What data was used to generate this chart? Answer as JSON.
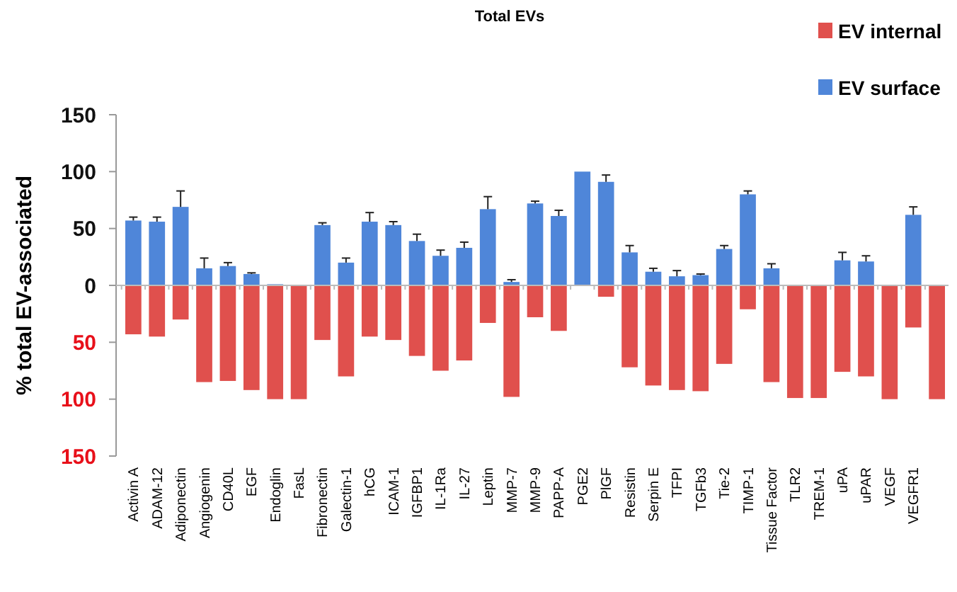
{
  "chart_data": {
    "type": "bar",
    "title": "Total EVs",
    "ylabel": "% total EV-associated",
    "categories": [
      "Activin A",
      "ADAM-12",
      "Adiponectin",
      "Angiogenin",
      "CD40L",
      "EGF",
      "Endoglin",
      "FasL",
      "Fibronectin",
      "Galectin-1",
      "hCG",
      "ICAM-1",
      "IGFBP1",
      "IL-1Ra",
      "IL-27",
      "Leptin",
      "MMP-7",
      "MMP-9",
      "PAPP-A",
      "PGE2",
      "PlGF",
      "Resistin",
      "Serpin E",
      "TFPI",
      "TGFb3",
      "Tie-2",
      "TIMP-1",
      "Tissue Factor",
      "TLR2",
      "TREM-1",
      "uPA",
      "uPAR",
      "VEGF",
      "VEGFR1",
      null
    ],
    "series": [
      {
        "name": "EV internal",
        "color": "#e0504d",
        "values": [
          -43,
          -45,
          -30,
          -85,
          -84,
          -92,
          -100,
          -100,
          -48,
          -80,
          -45,
          -48,
          -62,
          -75,
          -66,
          -33,
          -98,
          -28,
          -40,
          0,
          -10,
          -72,
          -88,
          -92,
          -93,
          -69,
          -21,
          -85,
          -99,
          -99,
          -76,
          -80,
          -100,
          -37,
          -100
        ]
      },
      {
        "name": "EV surface",
        "color": "#4f86d9",
        "values": [
          57,
          56,
          69,
          15,
          17,
          10,
          1,
          0,
          53,
          20,
          56,
          53,
          39,
          26,
          33,
          67,
          3,
          72,
          61,
          100,
          91,
          29,
          12,
          8,
          9,
          32,
          80,
          15,
          0,
          0,
          22,
          21,
          0,
          62,
          0
        ],
        "errors": [
          [
            57,
            60
          ],
          [
            56,
            60
          ],
          [
            69,
            83
          ],
          [
            15,
            24
          ],
          [
            17,
            20
          ],
          [
            10,
            11
          ],
          null,
          null,
          [
            53,
            55
          ],
          [
            20,
            24
          ],
          [
            56,
            64
          ],
          [
            53,
            56
          ],
          [
            39,
            45
          ],
          [
            26,
            31
          ],
          [
            33,
            38
          ],
          [
            67,
            78
          ],
          [
            3,
            5
          ],
          [
            72,
            74
          ],
          [
            61,
            66
          ],
          null,
          [
            91,
            97
          ],
          [
            29,
            35
          ],
          [
            12,
            15
          ],
          [
            8,
            13
          ],
          [
            9,
            10
          ],
          [
            32,
            35
          ],
          [
            80,
            83
          ],
          [
            15,
            19
          ],
          null,
          null,
          [
            22,
            29
          ],
          [
            21,
            26
          ],
          null,
          [
            62,
            69
          ],
          null
        ]
      }
    ],
    "stacked": true,
    "ylim": [
      -150,
      150
    ],
    "yticks": [
      {
        "value": -150,
        "label": "150"
      },
      {
        "value": -100,
        "label": "100"
      },
      {
        "value": -50,
        "label": "50"
      },
      0,
      50,
      100,
      150
    ],
    "legend": "top right"
  }
}
